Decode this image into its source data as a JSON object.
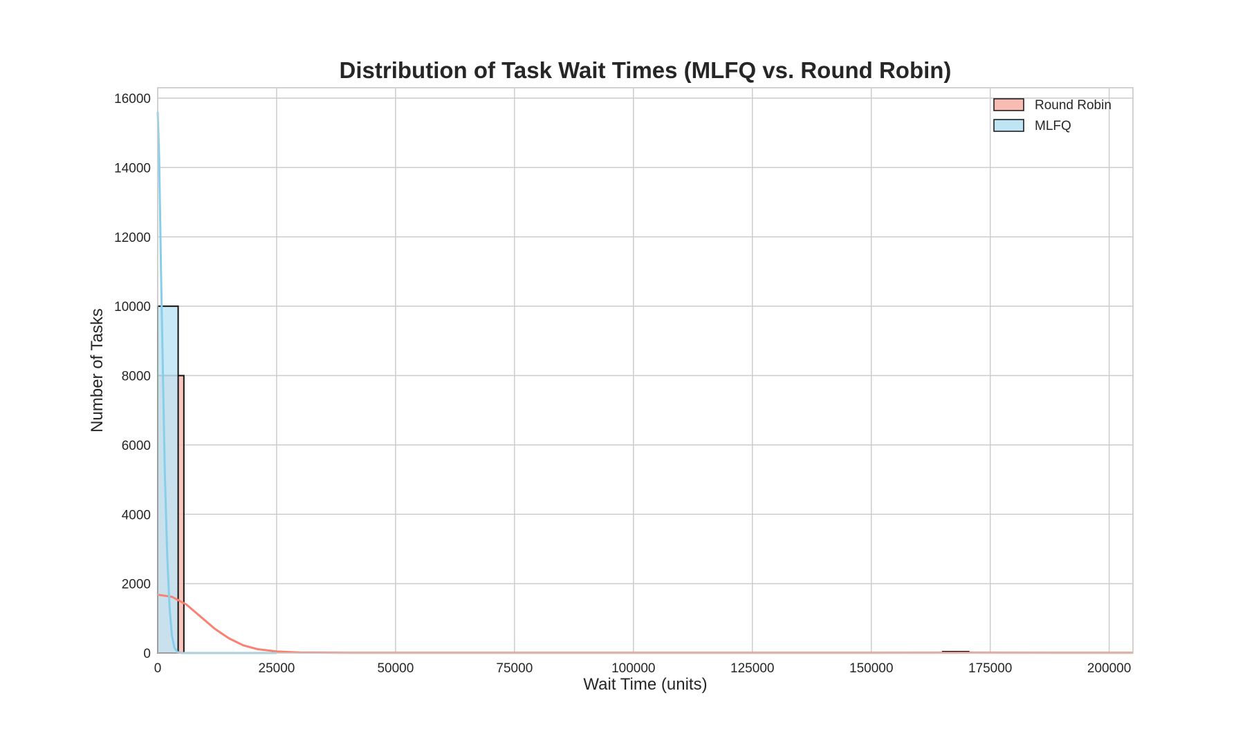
{
  "chart_data": {
    "type": "bar",
    "title": "Distribution of Task Wait Times (MLFQ vs. Round Robin)",
    "xlabel": "Wait Time (units)",
    "ylabel": "Number of Tasks",
    "xlim": [
      0,
      205000
    ],
    "ylim": [
      0,
      16300
    ],
    "xticks": [
      0,
      25000,
      50000,
      75000,
      100000,
      125000,
      150000,
      175000,
      200000
    ],
    "yticks": [
      0,
      2000,
      4000,
      6000,
      8000,
      10000,
      12000,
      14000,
      16000
    ],
    "grid": true,
    "legend_position": "top-right",
    "series": [
      {
        "name": "Round Robin",
        "color": "#fa8072",
        "fill": "#f9bcb3",
        "bins": [
          {
            "x0": 0,
            "x1": 5500,
            "count": 8000
          },
          {
            "x0": 165000,
            "x1": 170500,
            "count": 40
          }
        ],
        "kde": [
          [
            0,
            1680
          ],
          [
            3000,
            1620
          ],
          [
            6000,
            1400
          ],
          [
            9000,
            1050
          ],
          [
            12000,
            700
          ],
          [
            15000,
            420
          ],
          [
            18000,
            220
          ],
          [
            21000,
            110
          ],
          [
            25000,
            45
          ],
          [
            30000,
            12
          ],
          [
            40000,
            5
          ],
          [
            60000,
            5
          ],
          [
            100000,
            5
          ],
          [
            150000,
            5
          ],
          [
            170000,
            8
          ],
          [
            205000,
            4
          ]
        ]
      },
      {
        "name": "MLFQ",
        "color": "#87ceeb",
        "fill": "#bfe5f4",
        "bins": [
          {
            "x0": 0,
            "x1": 4300,
            "count": 10000
          }
        ],
        "kde": [
          [
            0,
            15600
          ],
          [
            300,
            14300
          ],
          [
            700,
            11000
          ],
          [
            1100,
            8000
          ],
          [
            1500,
            5200
          ],
          [
            2000,
            2800
          ],
          [
            2500,
            1300
          ],
          [
            3000,
            500
          ],
          [
            3500,
            150
          ],
          [
            4200,
            20
          ],
          [
            5000,
            0
          ],
          [
            25000,
            0
          ]
        ]
      }
    ]
  }
}
